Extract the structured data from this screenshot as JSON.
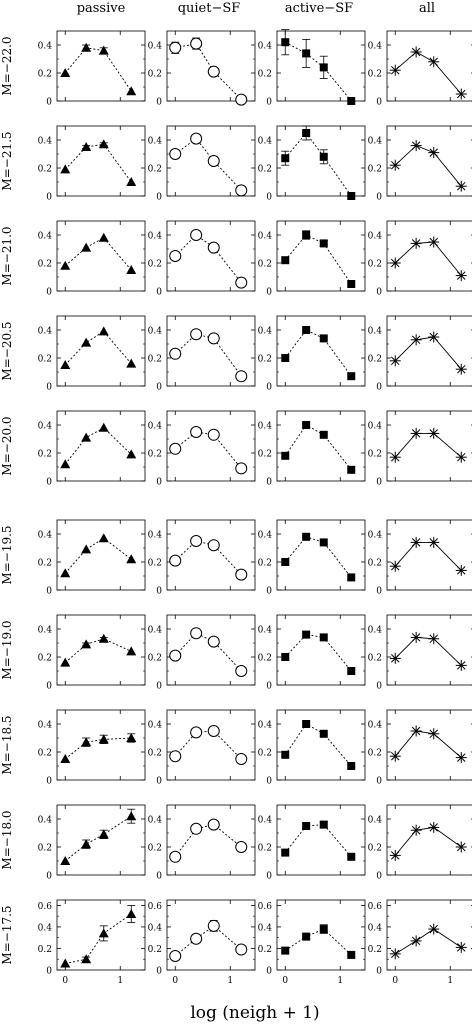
{
  "chart_data": {
    "type": "scatter",
    "title": "",
    "columns": [
      "passive",
      "quiet−SF",
      "active−SF",
      "all"
    ],
    "xlabel": "log (neigh + 1)",
    "xticks": [
      0,
      1
    ],
    "xlim": [
      -0.15,
      1.45
    ],
    "rows": [
      {
        "label": "M=−22.0",
        "ylim": [
          0,
          0.5
        ],
        "yticks": [
          "0",
          "0.2",
          "0.4"
        ],
        "series": [
          {
            "name": "passive",
            "x": [
              0,
              0.38,
              0.7,
              1.2
            ],
            "y": [
              0.2,
              0.38,
              0.36,
              0.07
            ],
            "err": [
              0,
              0.02,
              0.02,
              0
            ]
          },
          {
            "name": "quiet−SF",
            "x": [
              0,
              0.38,
              0.7,
              1.2
            ],
            "y": [
              0.38,
              0.41,
              0.21,
              0.01
            ],
            "err": [
              0.04,
              0.04,
              0.03,
              0.01
            ]
          },
          {
            "name": "active−SF",
            "x": [
              0,
              0.38,
              0.7,
              1.2
            ],
            "y": [
              0.42,
              0.34,
              0.24,
              0.0
            ],
            "err": [
              0.09,
              0.1,
              0.08,
              0
            ]
          },
          {
            "name": "all",
            "x": [
              0,
              0.38,
              0.7,
              1.2
            ],
            "y": [
              0.22,
              0.35,
              0.28,
              0.05
            ],
            "err": [
              0,
              0,
              0,
              0
            ]
          }
        ]
      },
      {
        "label": "M=−21.5",
        "ylim": [
          0,
          0.5
        ],
        "yticks": [
          "0",
          "0.2",
          "0.4"
        ],
        "series": [
          {
            "name": "passive",
            "x": [
              0,
              0.38,
              0.7,
              1.2
            ],
            "y": [
              0.19,
              0.35,
              0.37,
              0.1
            ],
            "err": [
              0,
              0.01,
              0.01,
              0
            ]
          },
          {
            "name": "quiet−SF",
            "x": [
              0,
              0.38,
              0.7,
              1.2
            ],
            "y": [
              0.3,
              0.41,
              0.25,
              0.04
            ],
            "err": [
              0.03,
              0.03,
              0.02,
              0.01
            ]
          },
          {
            "name": "active−SF",
            "x": [
              0,
              0.38,
              0.7,
              1.2
            ],
            "y": [
              0.27,
              0.45,
              0.28,
              0.0
            ],
            "err": [
              0.05,
              0.05,
              0.05,
              0
            ]
          },
          {
            "name": "all",
            "x": [
              0,
              0.38,
              0.7,
              1.2
            ],
            "y": [
              0.22,
              0.36,
              0.31,
              0.07
            ],
            "err": [
              0,
              0,
              0,
              0
            ]
          }
        ]
      },
      {
        "label": "M=−21.0",
        "ylim": [
          0,
          0.5
        ],
        "yticks": [
          "0",
          "0.2",
          "0.4"
        ],
        "series": [
          {
            "name": "passive",
            "x": [
              0,
              0.38,
              0.7,
              1.2
            ],
            "y": [
              0.18,
              0.31,
              0.38,
              0.15
            ],
            "err": [
              0,
              0,
              0,
              0
            ]
          },
          {
            "name": "quiet−SF",
            "x": [
              0,
              0.38,
              0.7,
              1.2
            ],
            "y": [
              0.25,
              0.4,
              0.31,
              0.06
            ],
            "err": [
              0.02,
              0.02,
              0.02,
              0.01
            ]
          },
          {
            "name": "active−SF",
            "x": [
              0,
              0.38,
              0.7,
              1.2
            ],
            "y": [
              0.22,
              0.4,
              0.34,
              0.05
            ],
            "err": [
              0,
              0.03,
              0.02,
              0
            ]
          },
          {
            "name": "all",
            "x": [
              0,
              0.38,
              0.7,
              1.2
            ],
            "y": [
              0.2,
              0.34,
              0.35,
              0.11
            ],
            "err": [
              0,
              0,
              0,
              0
            ]
          }
        ]
      },
      {
        "label": "M=−20.5",
        "ylim": [
          0,
          0.5
        ],
        "yticks": [
          "0",
          "0.2",
          "0.4"
        ],
        "series": [
          {
            "name": "passive",
            "x": [
              0,
              0.38,
              0.7,
              1.2
            ],
            "y": [
              0.15,
              0.31,
              0.39,
              0.16
            ],
            "err": [
              0,
              0,
              0,
              0
            ]
          },
          {
            "name": "quiet−SF",
            "x": [
              0,
              0.38,
              0.7,
              1.2
            ],
            "y": [
              0.23,
              0.37,
              0.34,
              0.07
            ],
            "err": [
              0.02,
              0.02,
              0.02,
              0
            ]
          },
          {
            "name": "active−SF",
            "x": [
              0,
              0.38,
              0.7,
              1.2
            ],
            "y": [
              0.2,
              0.4,
              0.34,
              0.07
            ],
            "err": [
              0,
              0,
              0,
              0
            ]
          },
          {
            "name": "all",
            "x": [
              0,
              0.38,
              0.7,
              1.2
            ],
            "y": [
              0.18,
              0.33,
              0.35,
              0.12
            ],
            "err": [
              0,
              0,
              0,
              0
            ]
          }
        ]
      },
      {
        "label": "M=−20.0",
        "ylim": [
          0,
          0.5
        ],
        "yticks": [
          "0",
          "0.2",
          "0.4"
        ],
        "series": [
          {
            "name": "passive",
            "x": [
              0,
              0.38,
              0.7,
              1.2
            ],
            "y": [
              0.12,
              0.31,
              0.38,
              0.19
            ],
            "err": [
              0,
              0,
              0,
              0
            ]
          },
          {
            "name": "quiet−SF",
            "x": [
              0,
              0.38,
              0.7,
              1.2
            ],
            "y": [
              0.23,
              0.35,
              0.33,
              0.09
            ],
            "err": [
              0.02,
              0.02,
              0.01,
              0
            ]
          },
          {
            "name": "active−SF",
            "x": [
              0,
              0.38,
              0.7,
              1.2
            ],
            "y": [
              0.18,
              0.4,
              0.33,
              0.08
            ],
            "err": [
              0,
              0,
              0,
              0
            ]
          },
          {
            "name": "all",
            "x": [
              0,
              0.38,
              0.7,
              1.2
            ],
            "y": [
              0.17,
              0.34,
              0.34,
              0.17
            ],
            "err": [
              0,
              0,
              0,
              0
            ]
          }
        ]
      },
      {
        "label": "M=−19.5",
        "ylim": [
          0,
          0.5
        ],
        "yticks": [
          "0",
          "0.2",
          "0.4"
        ],
        "series": [
          {
            "name": "passive",
            "x": [
              0,
              0.38,
              0.7,
              1.2
            ],
            "y": [
              0.12,
              0.29,
              0.37,
              0.22
            ],
            "err": [
              0,
              0,
              0,
              0
            ]
          },
          {
            "name": "quiet−SF",
            "x": [
              0,
              0.38,
              0.7,
              1.2
            ],
            "y": [
              0.21,
              0.35,
              0.32,
              0.11
            ],
            "err": [
              0.02,
              0.01,
              0.01,
              0.01
            ]
          },
          {
            "name": "active−SF",
            "x": [
              0,
              0.38,
              0.7,
              1.2
            ],
            "y": [
              0.2,
              0.38,
              0.34,
              0.09
            ],
            "err": [
              0,
              0,
              0,
              0
            ]
          },
          {
            "name": "all",
            "x": [
              0,
              0.38,
              0.7,
              1.2
            ],
            "y": [
              0.17,
              0.34,
              0.34,
              0.14
            ],
            "err": [
              0,
              0,
              0,
              0
            ]
          }
        ]
      },
      {
        "label": "M=−19.0",
        "ylim": [
          0,
          0.5
        ],
        "yticks": [
          "0",
          "0.2",
          "0.4"
        ],
        "series": [
          {
            "name": "passive",
            "x": [
              0,
              0.38,
              0.7,
              1.2
            ],
            "y": [
              0.16,
              0.29,
              0.33,
              0.24
            ],
            "err": [
              0,
              0.01,
              0.01,
              0
            ]
          },
          {
            "name": "quiet−SF",
            "x": [
              0,
              0.38,
              0.7,
              1.2
            ],
            "y": [
              0.21,
              0.37,
              0.31,
              0.1
            ],
            "err": [
              0.02,
              0.02,
              0.02,
              0.01
            ]
          },
          {
            "name": "active−SF",
            "x": [
              0,
              0.38,
              0.7,
              1.2
            ],
            "y": [
              0.2,
              0.36,
              0.34,
              0.1
            ],
            "err": [
              0,
              0,
              0,
              0
            ]
          },
          {
            "name": "all",
            "x": [
              0,
              0.38,
              0.7,
              1.2
            ],
            "y": [
              0.19,
              0.34,
              0.33,
              0.14
            ],
            "err": [
              0,
              0,
              0,
              0
            ]
          }
        ]
      },
      {
        "label": "M=−18.5",
        "ylim": [
          0,
          0.5
        ],
        "yticks": [
          "0",
          "0.2",
          "0.4"
        ],
        "series": [
          {
            "name": "passive",
            "x": [
              0,
              0.38,
              0.7,
              1.2
            ],
            "y": [
              0.15,
              0.27,
              0.29,
              0.3
            ],
            "err": [
              0,
              0.03,
              0.03,
              0.03
            ]
          },
          {
            "name": "quiet−SF",
            "x": [
              0,
              0.38,
              0.7,
              1.2
            ],
            "y": [
              0.17,
              0.34,
              0.35,
              0.15
            ],
            "err": [
              0.02,
              0.02,
              0.03,
              0.02
            ]
          },
          {
            "name": "active−SF",
            "x": [
              0,
              0.38,
              0.7,
              1.2
            ],
            "y": [
              0.18,
              0.4,
              0.33,
              0.1
            ],
            "err": [
              0,
              0,
              0,
              0
            ]
          },
          {
            "name": "all",
            "x": [
              0,
              0.38,
              0.7,
              1.2
            ],
            "y": [
              0.17,
              0.35,
              0.33,
              0.16
            ],
            "err": [
              0,
              0,
              0,
              0
            ]
          }
        ]
      },
      {
        "label": "M=−18.0",
        "ylim": [
          0,
          0.5
        ],
        "yticks": [
          "0",
          "0.2",
          "0.4"
        ],
        "series": [
          {
            "name": "passive",
            "x": [
              0,
              0.38,
              0.7,
              1.2
            ],
            "y": [
              0.1,
              0.22,
              0.29,
              0.42
            ],
            "err": [
              0,
              0.03,
              0.03,
              0.05
            ]
          },
          {
            "name": "quiet−SF",
            "x": [
              0,
              0.38,
              0.7,
              1.2
            ],
            "y": [
              0.13,
              0.33,
              0.36,
              0.2
            ],
            "err": [
              0.03,
              0.03,
              0.03,
              0.03
            ]
          },
          {
            "name": "active−SF",
            "x": [
              0,
              0.38,
              0.7,
              1.2
            ],
            "y": [
              0.16,
              0.35,
              0.36,
              0.13
            ],
            "err": [
              0,
              0.02,
              0.02,
              0
            ]
          },
          {
            "name": "all",
            "x": [
              0,
              0.38,
              0.7,
              1.2
            ],
            "y": [
              0.14,
              0.32,
              0.34,
              0.2
            ],
            "err": [
              0,
              0,
              0,
              0
            ]
          }
        ]
      },
      {
        "label": "M=−17.5",
        "ylim": [
          0,
          0.65
        ],
        "yticks": [
          "0",
          "0.2",
          "0.4",
          "0.6"
        ],
        "series": [
          {
            "name": "passive",
            "x": [
              0,
              0.38,
              0.7,
              1.2
            ],
            "y": [
              0.06,
              0.1,
              0.34,
              0.52
            ],
            "err": [
              0,
              0.02,
              0.07,
              0.08
            ]
          },
          {
            "name": "quiet−SF",
            "x": [
              0,
              0.38,
              0.7,
              1.2
            ],
            "y": [
              0.13,
              0.29,
              0.41,
              0.19
            ],
            "err": [
              0.03,
              0.04,
              0.05,
              0.03
            ]
          },
          {
            "name": "active−SF",
            "x": [
              0,
              0.38,
              0.7,
              1.2
            ],
            "y": [
              0.18,
              0.31,
              0.38,
              0.14
            ],
            "err": [
              0,
              0.02,
              0.04,
              0
            ]
          },
          {
            "name": "all",
            "x": [
              0,
              0.38,
              0.7,
              1.2
            ],
            "y": [
              0.15,
              0.27,
              0.38,
              0.21
            ],
            "err": [
              0,
              0,
              0,
              0
            ]
          }
        ]
      }
    ]
  }
}
